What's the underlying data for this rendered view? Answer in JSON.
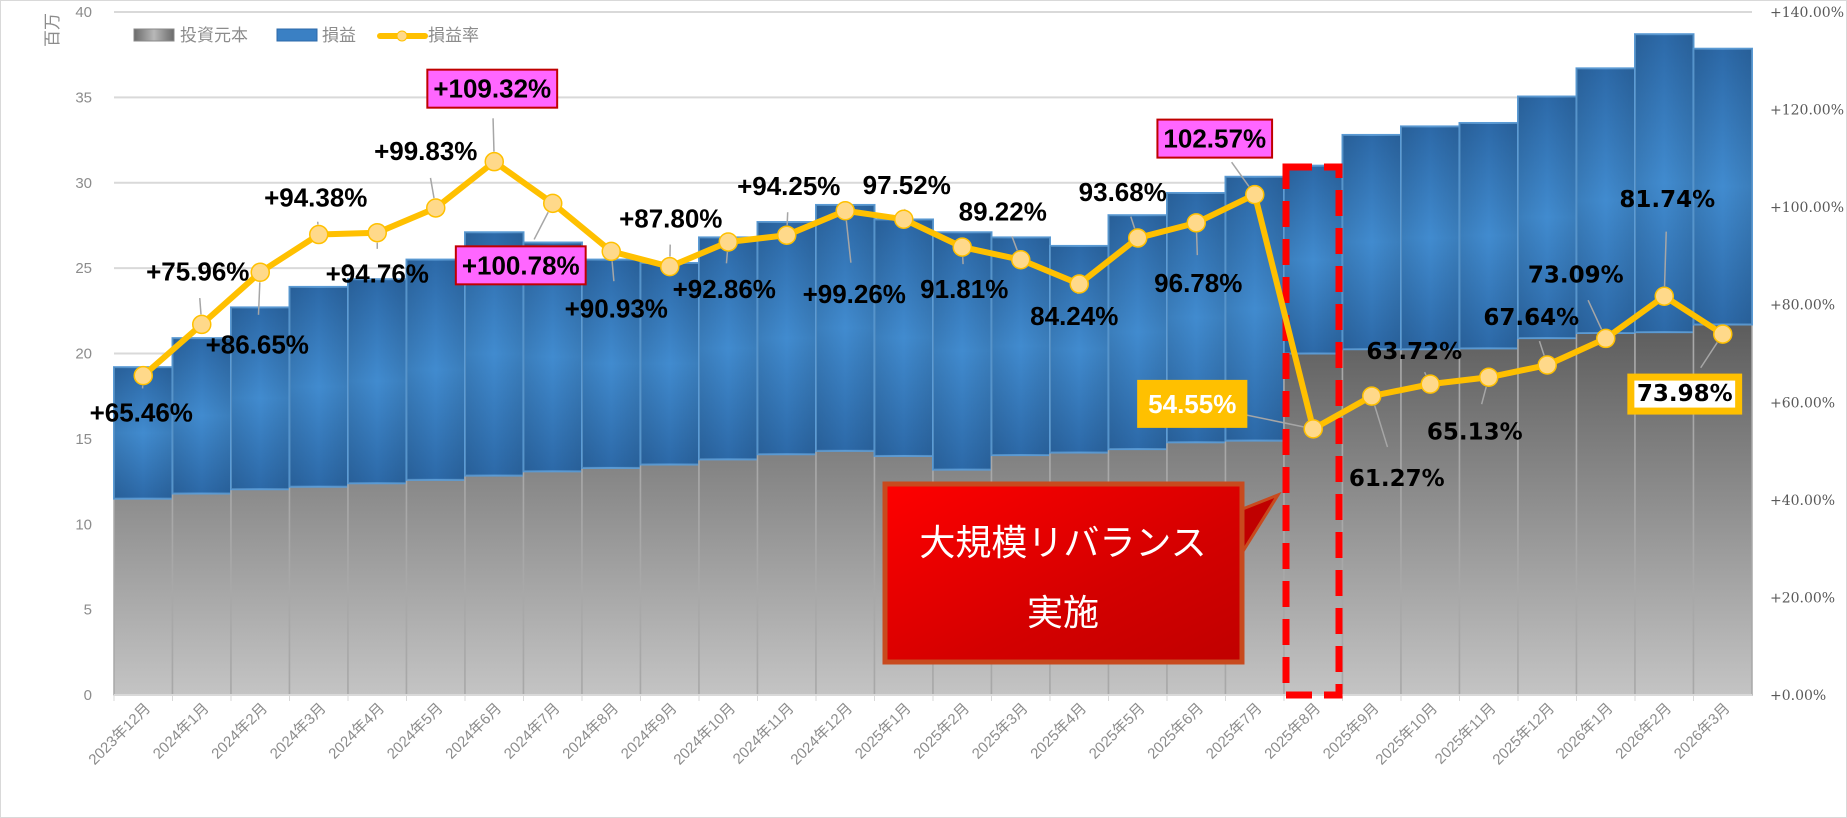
{
  "chart_data": {
    "type": "bar",
    "subtype": "stacked-bar-with-line",
    "categories": [
      "2023年12月",
      "2024年1月",
      "2024年2月",
      "2024年3月",
      "2024年4月",
      "2024年5月",
      "2024年6月",
      "2024年7月",
      "2024年8月",
      "2024年9月",
      "2024年10月",
      "2024年11月",
      "2024年12月",
      "2025年1月",
      "2025年2月",
      "2025年3月",
      "2025年4月",
      "2025年5月",
      "2025年6月",
      "2025年7月",
      "2025年8月",
      "2025年9月",
      "2025年10月",
      "2025年11月",
      "2025年12月",
      "2026年1月",
      "2026年2月",
      "2026年3月"
    ],
    "series": [
      {
        "name": "投資元本",
        "axis": "left",
        "type": "bar",
        "color": "#7f7f7f",
        "values": [
          11.5,
          11.8,
          12.05,
          12.2,
          12.4,
          12.6,
          12.85,
          13.1,
          13.3,
          13.5,
          13.8,
          14.1,
          14.3,
          14.0,
          13.2,
          14.05,
          14.2,
          14.4,
          14.8,
          14.9,
          20.0,
          20.25,
          20.25,
          20.3,
          20.9,
          21.2,
          21.25,
          21.7
        ]
      },
      {
        "name": "損益",
        "axis": "left",
        "type": "bar",
        "color": "#3a80c4",
        "values": [
          7.7,
          9.1,
          10.65,
          11.7,
          11.95,
          12.9,
          14.25,
          13.4,
          12.2,
          11.8,
          13.0,
          13.6,
          14.4,
          13.85,
          13.9,
          12.75,
          12.1,
          13.7,
          14.6,
          15.45,
          11.0,
          12.55,
          13.05,
          13.2,
          14.15,
          15.5,
          17.45,
          16.15
        ]
      },
      {
        "name": "損益率",
        "axis": "right",
        "type": "line",
        "color": "#FFC000",
        "values": [
          65.46,
          75.96,
          86.65,
          94.38,
          94.76,
          99.83,
          109.32,
          100.78,
          90.93,
          87.8,
          92.86,
          94.25,
          99.26,
          97.52,
          91.81,
          89.22,
          84.24,
          93.68,
          96.78,
          102.57,
          54.55,
          61.27,
          63.72,
          65.13,
          67.64,
          73.09,
          81.74,
          73.98
        ]
      }
    ],
    "data_labels": [
      "+65.46%",
      "+75.96%",
      "+86.65%",
      "+94.38%",
      "+94.76%",
      "+99.83%",
      "+109.32%",
      "+100.78%",
      "+90.93%",
      "+87.80%",
      "+92.86%",
      "+94.25%",
      "+99.26%",
      "97.52%",
      "91.81%",
      "89.22%",
      "84.24%",
      "93.68%",
      "96.78%",
      "102.57%",
      "54.55%",
      "61.27%",
      "63.72%",
      "65.13%",
      "67.64%",
      "73.09%",
      "81.74%",
      "73.98%"
    ],
    "ylabel": "百万",
    "ylim": [
      0,
      40
    ],
    "y_ticks": [
      "0",
      "5",
      "10",
      "15",
      "20",
      "25",
      "30",
      "35",
      "40"
    ],
    "y2lim": [
      0,
      140
    ],
    "y2_ticks": [
      "+0.00%",
      "+20.00%",
      "+40.00%",
      "+60.00%",
      "+80.00%",
      "+100.00%",
      "+120.00%",
      "+140.00%"
    ],
    "grid": true,
    "legend": {
      "placement": "top-left",
      "entries": [
        "投資元本",
        "損益",
        "損益率"
      ]
    },
    "annotations": {
      "callout_lines": [
        "大規模リバランス",
        "実施"
      ],
      "highlight_category": "2025年8月"
    }
  }
}
